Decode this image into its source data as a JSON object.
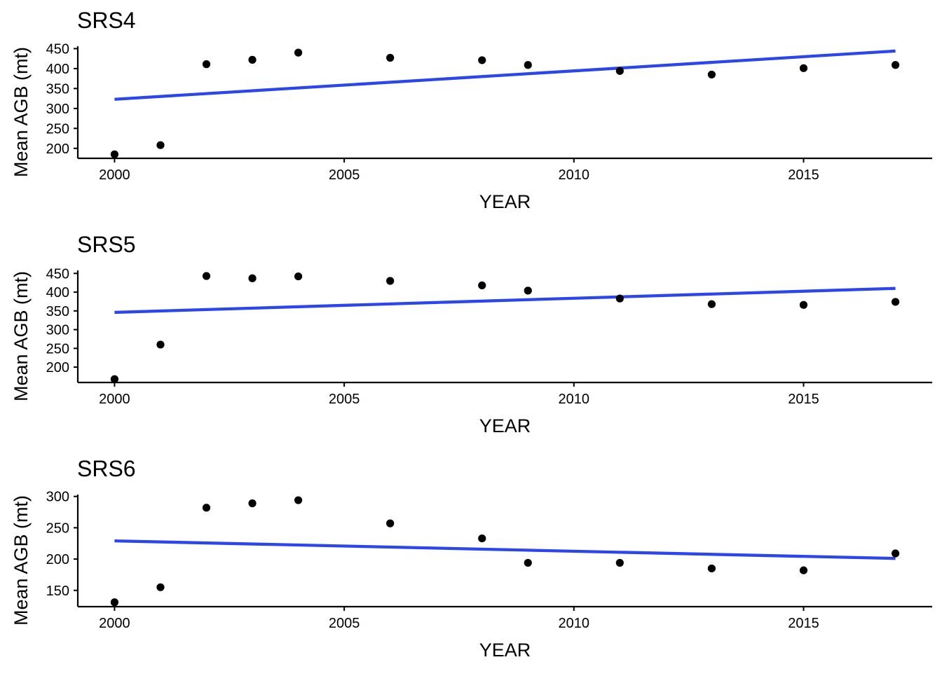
{
  "colors": {
    "trend_line": "#2c46ee",
    "points": "#000000",
    "axis": "#000000",
    "background": "#ffffff"
  },
  "chart_data": [
    {
      "type": "scatter",
      "title": "SRS4",
      "xlabel": "YEAR",
      "ylabel": "Mean AGB (mt)",
      "xlim": [
        1999.2,
        2017.8
      ],
      "ylim": [
        175,
        456
      ],
      "xticks": [
        2000,
        2005,
        2010,
        2015
      ],
      "yticks": [
        200,
        250,
        300,
        350,
        400,
        450
      ],
      "grid": false,
      "legend": "none",
      "points": {
        "x": [
          2000,
          2001,
          2002,
          2003,
          2004,
          2006,
          2008,
          2009,
          2011,
          2013,
          2015,
          2017
        ],
        "y": [
          185,
          208,
          411,
          422,
          440,
          427,
          421,
          409,
          394,
          385,
          401,
          409
        ]
      },
      "trend": {
        "x": [
          2000,
          2017
        ],
        "y": [
          323,
          444
        ]
      }
    },
    {
      "type": "scatter",
      "title": "SRS5",
      "xlabel": "YEAR",
      "ylabel": "Mean AGB (mt)",
      "xlim": [
        1999.2,
        2017.8
      ],
      "ylim": [
        159,
        458
      ],
      "xticks": [
        2000,
        2005,
        2010,
        2015
      ],
      "yticks": [
        200,
        250,
        300,
        350,
        400,
        450
      ],
      "grid": false,
      "legend": "none",
      "points": {
        "x": [
          2000,
          2001,
          2002,
          2003,
          2004,
          2006,
          2008,
          2009,
          2011,
          2013,
          2015,
          2017
        ],
        "y": [
          168,
          260,
          443,
          437,
          442,
          430,
          418,
          404,
          383,
          368,
          366,
          374
        ]
      },
      "trend": {
        "x": [
          2000,
          2017
        ],
        "y": [
          346,
          410
        ]
      }
    },
    {
      "type": "scatter",
      "title": "SRS6",
      "xlabel": "YEAR",
      "ylabel": "Mean AGB (mt)",
      "xlim": [
        1999.2,
        2017.8
      ],
      "ylim": [
        124,
        303
      ],
      "xticks": [
        2000,
        2005,
        2010,
        2015
      ],
      "yticks": [
        150,
        200,
        250,
        300
      ],
      "grid": false,
      "legend": "none",
      "points": {
        "x": [
          2000,
          2001,
          2002,
          2003,
          2004,
          2006,
          2008,
          2009,
          2011,
          2013,
          2015,
          2017
        ],
        "y": [
          131,
          155,
          282,
          289,
          294,
          257,
          233,
          194,
          194,
          185,
          182,
          209
        ]
      },
      "trend": {
        "x": [
          2000,
          2017
        ],
        "y": [
          229,
          201
        ]
      }
    }
  ]
}
